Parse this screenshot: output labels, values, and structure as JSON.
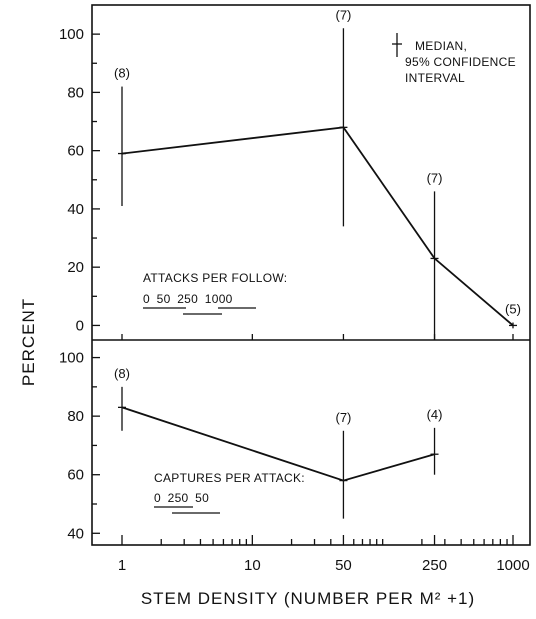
{
  "chart_data": {
    "type": "line",
    "xlabel": "STEM DENSITY (NUMBER PER M² +1)",
    "ylabel": "PERCENT",
    "x_scale": "log",
    "x_ticks": [
      1,
      10,
      50,
      250,
      1000
    ],
    "x_tick_labels": [
      "1",
      "10",
      "50",
      "250",
      "1000"
    ],
    "legend": {
      "label_line1": "MEDIAN,",
      "label_line2": "95% CONFIDENCE",
      "label_line3": "INTERVAL",
      "placement": "top-right"
    },
    "panels": [
      {
        "name": "top",
        "ylim": [
          -5,
          110
        ],
        "yticks": [
          0,
          20,
          40,
          60,
          80,
          100
        ],
        "annotation": {
          "title": "ATTACKS PER FOLLOW:",
          "groups_text": "0 50 250 1000",
          "groups": [
            "0",
            "50",
            "250",
            "1000"
          ]
        },
        "points": [
          {
            "x": 1,
            "y": 59,
            "low": 41,
            "high": 82,
            "n": "(8)"
          },
          {
            "x": 50,
            "y": 68,
            "low": 34,
            "high": 102,
            "n": "(7)"
          },
          {
            "x": 250,
            "y": 23,
            "low": -5,
            "high": 46,
            "n": "(7)"
          },
          {
            "x": 1000,
            "y": 0,
            "low": -1,
            "high": 1,
            "n": "(5)"
          }
        ]
      },
      {
        "name": "bottom",
        "ylim": [
          36,
          106
        ],
        "yticks": [
          40,
          60,
          80,
          100
        ],
        "annotation": {
          "title": "CAPTURES PER ATTACK:",
          "groups_text": "0 250 50",
          "groups": [
            "0",
            "250",
            "50"
          ]
        },
        "points": [
          {
            "x": 1,
            "y": 83,
            "low": 75,
            "high": 90,
            "n": "(8)"
          },
          {
            "x": 50,
            "y": 58,
            "low": 45,
            "high": 75,
            "n": "(7)"
          },
          {
            "x": 250,
            "y": 67,
            "low": 60,
            "high": 76,
            "n": "(4)"
          }
        ]
      }
    ]
  }
}
